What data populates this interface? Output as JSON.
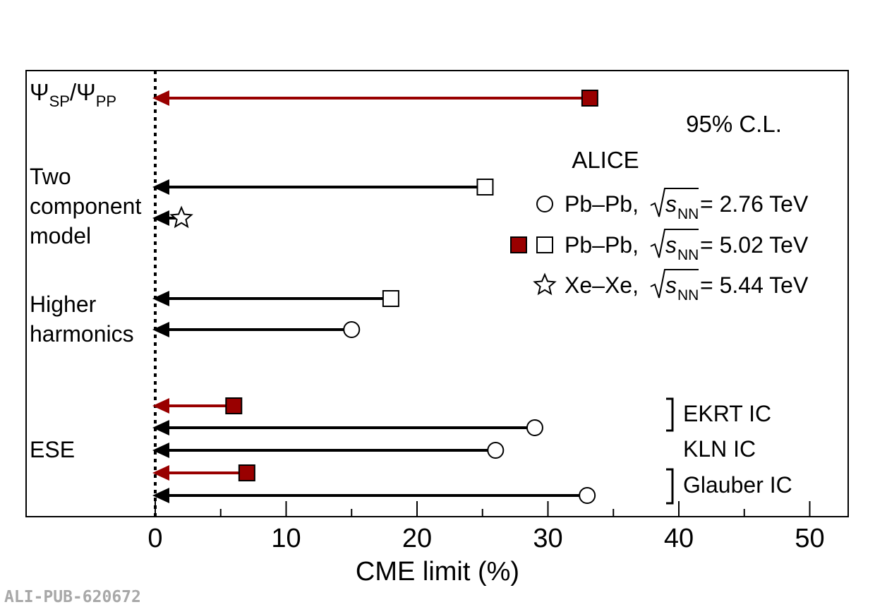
{
  "chart_data": {
    "type": "interval",
    "xlabel": "CME limit (%)",
    "xlim": [
      -10,
      53
    ],
    "x_ticks": [
      0,
      10,
      20,
      30,
      40,
      50
    ],
    "reference_line_x": 0,
    "groups": [
      {
        "label_lines": [
          "Ψ_SP/Ψ_PP"
        ],
        "label_main": "Ψ",
        "label_sub1": "SP",
        "label_sep": "/",
        "label_main2": "Ψ",
        "label_sub2": "PP"
      },
      {
        "label_lines": [
          "Two",
          "component",
          "model"
        ]
      },
      {
        "label_lines": [
          "Higher",
          "harmonics"
        ]
      },
      {
        "label_lines": [
          "ESE"
        ]
      }
    ],
    "limits": [
      {
        "group": 0,
        "value": 33.2,
        "dataset": "pbpb502",
        "marker": "filled-square",
        "color": "#990000"
      },
      {
        "group": 1,
        "value": 25.2,
        "dataset": "pbpb502",
        "marker": "open-square",
        "color": "#000000"
      },
      {
        "group": 1,
        "value": 2.0,
        "dataset": "xexe544",
        "marker": "open-star",
        "color": "#000000"
      },
      {
        "group": 2,
        "value": 18.0,
        "dataset": "pbpb502",
        "marker": "open-square",
        "color": "#000000"
      },
      {
        "group": 2,
        "value": 15.0,
        "dataset": "pbpb276",
        "marker": "open-circle",
        "color": "#000000"
      },
      {
        "group": 3,
        "value": 6.0,
        "dataset": "pbpb502",
        "marker": "filled-square",
        "color": "#990000"
      },
      {
        "group": 3,
        "value": 29.0,
        "dataset": "pbpb276",
        "marker": "open-circle",
        "color": "#000000"
      },
      {
        "group": 3,
        "value": 26.0,
        "dataset": "pbpb276",
        "marker": "open-circle",
        "color": "#000000"
      },
      {
        "group": 3,
        "value": 7.0,
        "dataset": "pbpb502",
        "marker": "filled-square",
        "color": "#990000"
      },
      {
        "group": 3,
        "value": 33.0,
        "dataset": "pbpb276",
        "marker": "open-circle",
        "color": "#000000"
      }
    ],
    "annotations": {
      "confidence": "95% C.L.",
      "experiment": "ALICE",
      "ic_labels": [
        "EKRT IC",
        "KLN IC",
        "Glauber IC"
      ]
    },
    "legend": [
      {
        "system": "Pb–Pb, ",
        "energy": " = 2.76 TeV",
        "markers": [
          "open-circle"
        ]
      },
      {
        "system": "Pb–Pb, ",
        "energy": " = 5.02 TeV",
        "markers": [
          "filled-square",
          "open-square"
        ]
      },
      {
        "system": "Xe–Xe, ",
        "energy": " = 5.44 TeV",
        "markers": [
          "open-star"
        ]
      }
    ],
    "legend_placement": "right",
    "legend_sqrt_symbol": "s",
    "legend_sqrt_sub": "NN"
  },
  "colors": {
    "pbpb502_filled": "#990000",
    "open": "#000000"
  },
  "watermark": "ALI-PUB-620672"
}
